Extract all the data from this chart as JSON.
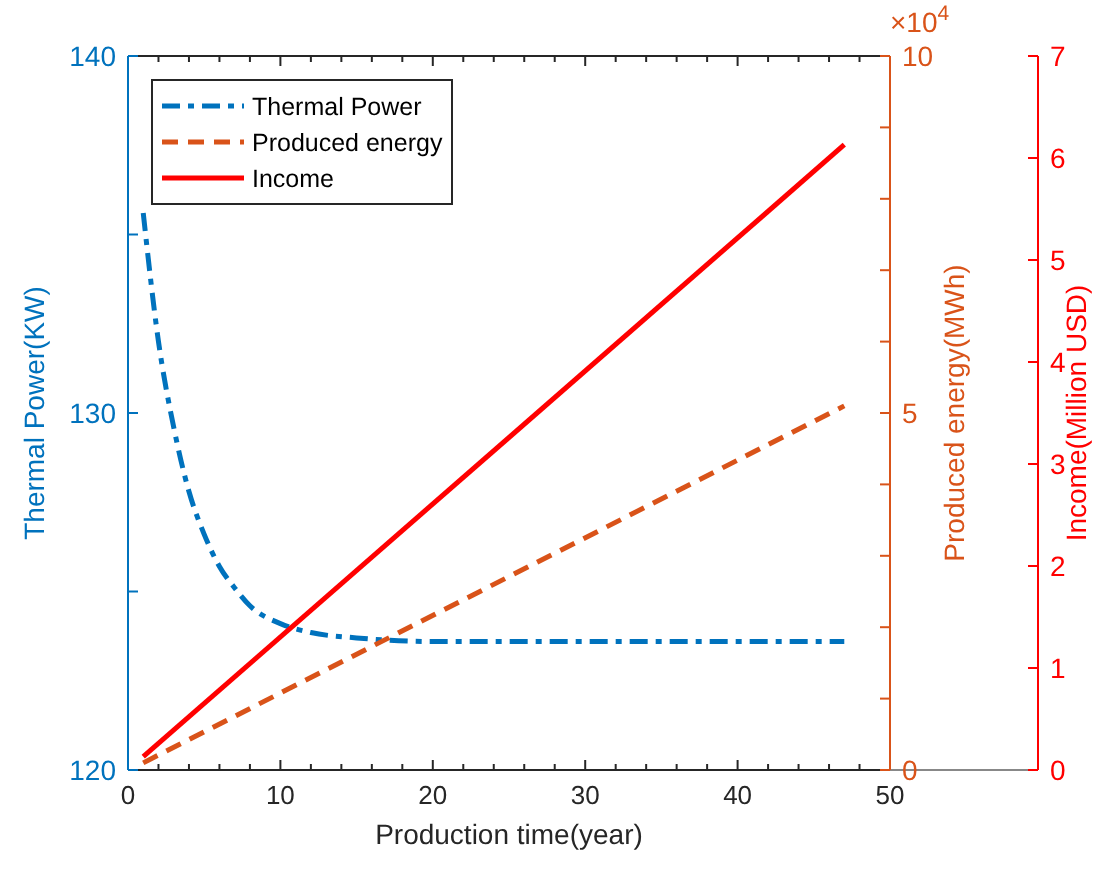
{
  "chart_data": {
    "type": "line",
    "xlabel": "Production time(year)",
    "ylabel": "Thermal Power(KW)",
    "y2label": "Produced energy(MWh)",
    "y3label": "Income(Million USD)",
    "annotations": [
      "×10$^{4}$"
    ],
    "xlim": [
      0,
      50
    ],
    "xticks": [
      0,
      {
        "value": 2,
        "label": null
      },
      {
        "value": 4,
        "label": null
      },
      {
        "value": 6,
        "label": null
      },
      {
        "value": 8,
        "label": null
      },
      10,
      {
        "value": 12,
        "label": null
      },
      {
        "value": 14,
        "label": null
      },
      {
        "value": 16,
        "label": null
      },
      {
        "value": 18,
        "label": null
      },
      20,
      {
        "value": 22,
        "label": null
      },
      {
        "value": 24,
        "label": null
      },
      {
        "value": 26,
        "label": null
      },
      {
        "value": 28,
        "label": null
      },
      30,
      {
        "value": 32,
        "label": null
      },
      {
        "value": 34,
        "label": null
      },
      {
        "value": 36,
        "label": null
      },
      {
        "value": 38,
        "label": null
      },
      40,
      {
        "value": 42,
        "label": null
      },
      {
        "value": 44,
        "label": null
      },
      {
        "value": 46,
        "label": null
      },
      {
        "value": 48,
        "label": null
      },
      50
    ],
    "ylim": [
      120,
      140
    ],
    "yticks": [
      120,
      {
        "value": 125,
        "label": null
      },
      130,
      {
        "value": 135,
        "label": null
      },
      140
    ],
    "y2lim": [
      0,
      10
    ],
    "y2ticks": [
      0,
      {
        "value": 1,
        "label": null
      },
      {
        "value": 2,
        "label": null
      },
      {
        "value": 3,
        "label": null
      },
      {
        "value": 4,
        "label": null
      },
      5,
      {
        "value": 6,
        "label": null
      },
      {
        "value": 7,
        "label": null
      },
      {
        "value": 8,
        "label": null
      },
      {
        "value": 9,
        "label": null
      },
      10
    ],
    "y3lim": [
      0,
      7
    ],
    "y3ticks": [
      0,
      1,
      2,
      3,
      4,
      5,
      6,
      7
    ],
    "legend": "top left",
    "grid": false,
    "series": [
      {
        "name": "Thermal Power",
        "color": "#0072bd",
        "line_style": "dashdot",
        "x": [
          1,
          2,
          3,
          4,
          5,
          6,
          7,
          8,
          10,
          12,
          15,
          20,
          30,
          40,
          47
        ],
        "values": [
          135.6,
          132.0,
          129.6,
          127.8,
          126.6,
          125.7,
          125.1,
          124.6,
          124.1,
          123.85,
          123.7,
          123.6,
          123.6,
          123.6,
          123.6
        ]
      },
      {
        "name": "Produced energy",
        "color": "#d95319",
        "line_style": "dashed",
        "axis": "y2",
        "x": [
          1,
          47
        ],
        "values": [
          0.1,
          5.1
        ]
      },
      {
        "name": "Income",
        "color": "#ff0000",
        "line_style": "solid",
        "axis": "y3",
        "x": [
          1,
          47
        ],
        "values": [
          0.13,
          6.13
        ]
      }
    ]
  }
}
